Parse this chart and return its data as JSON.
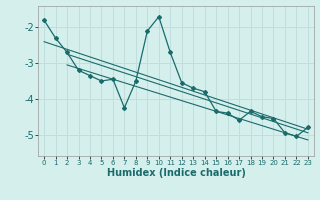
{
  "xlabel": "Humidex (Indice chaleur)",
  "background_color": "#d5efed",
  "grid_color": "#c0dedd",
  "line_color": "#1a6b6b",
  "xlim": [
    -0.5,
    23.5
  ],
  "ylim": [
    -5.6,
    -1.4
  ],
  "yticks": [
    -5,
    -4,
    -3,
    -2
  ],
  "xticks": [
    0,
    1,
    2,
    3,
    4,
    5,
    6,
    7,
    8,
    9,
    10,
    11,
    12,
    13,
    14,
    15,
    16,
    17,
    18,
    19,
    20,
    21,
    22,
    23
  ],
  "series": [
    [
      0,
      -1.8
    ],
    [
      1,
      -2.3
    ],
    [
      2,
      -2.7
    ],
    [
      3,
      -3.2
    ],
    [
      4,
      -3.35
    ],
    [
      5,
      -3.5
    ],
    [
      6,
      -3.45
    ],
    [
      7,
      -4.25
    ],
    [
      8,
      -3.5
    ],
    [
      9,
      -2.1
    ],
    [
      10,
      -1.7
    ],
    [
      11,
      -2.7
    ],
    [
      12,
      -3.55
    ],
    [
      13,
      -3.7
    ],
    [
      14,
      -3.8
    ],
    [
      15,
      -4.35
    ],
    [
      16,
      -4.4
    ],
    [
      17,
      -4.6
    ],
    [
      18,
      -4.35
    ],
    [
      19,
      -4.5
    ],
    [
      20,
      -4.55
    ],
    [
      21,
      -4.95
    ],
    [
      22,
      -5.05
    ],
    [
      23,
      -4.8
    ]
  ],
  "trend_series": [
    [
      [
        0,
        -2.4
      ],
      [
        23,
        -4.85
      ]
    ],
    [
      [
        2,
        -2.75
      ],
      [
        23,
        -4.95
      ]
    ],
    [
      [
        2,
        -3.05
      ],
      [
        23,
        -5.15
      ]
    ]
  ],
  "xlabel_fontsize": 7,
  "xlabel_fontweight": "bold",
  "ytick_fontsize": 7,
  "xtick_fontsize": 5,
  "marker": "D",
  "markersize": 2.0,
  "linewidth": 0.9,
  "trend_linewidth": 0.8
}
